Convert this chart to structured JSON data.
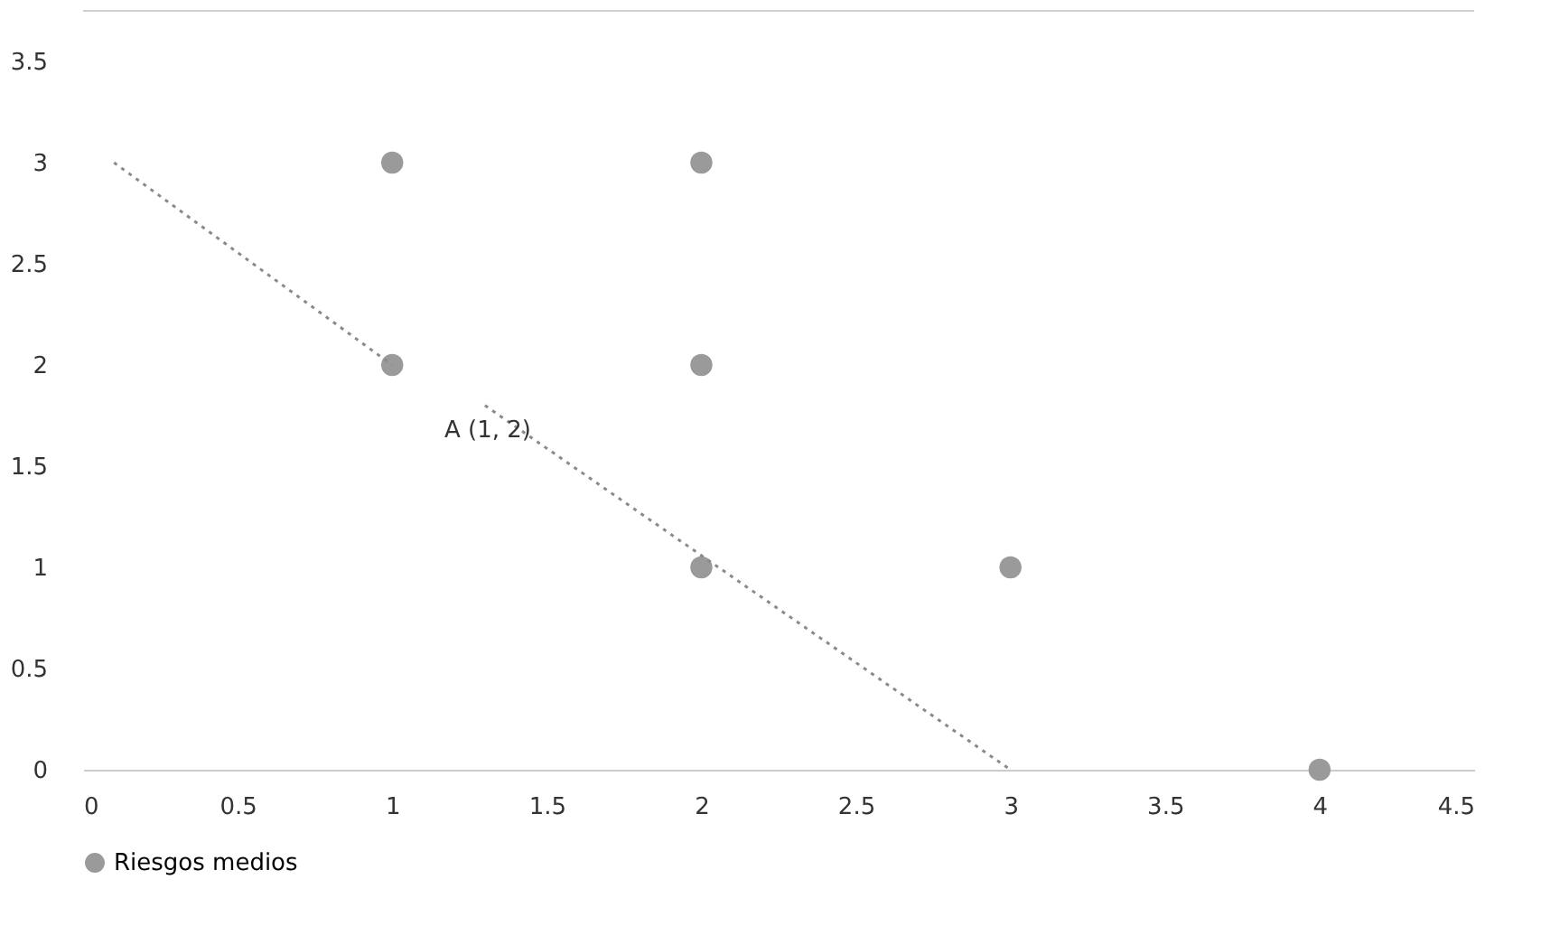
{
  "chart_data": {
    "type": "scatter",
    "xlim": [
      0,
      4.5
    ],
    "xticks": [
      0,
      0.5,
      1,
      1.5,
      2,
      2.5,
      3,
      3.5,
      4,
      4.5
    ],
    "ylim": [
      0,
      3.75
    ],
    "yticks": [
      0,
      0.5,
      1,
      1.5,
      2,
      2.5,
      3,
      3.5
    ],
    "series": [
      {
        "name": "Riesgos medios",
        "color": "#9a9a9a",
        "marker": "circle",
        "x": [
          1,
          1,
          2,
          2,
          2,
          3,
          4
        ],
        "values": [
          3,
          2,
          3,
          2,
          1,
          1,
          0
        ]
      },
      {
        "type": "line",
        "color": "#8a8a8a",
        "line_style": "dotted",
        "marker": "none",
        "x": [
          0.1,
          1
        ],
        "values": [
          3,
          2
        ]
      },
      {
        "type": "line",
        "color": "#8a8a8a",
        "line_style": "dotted",
        "marker": "none",
        "x": [
          1.3,
          3
        ],
        "values": [
          1.8,
          0
        ]
      }
    ],
    "annotations": [
      "A (1, 2)"
    ],
    "grid": false,
    "legend": "bottom"
  }
}
